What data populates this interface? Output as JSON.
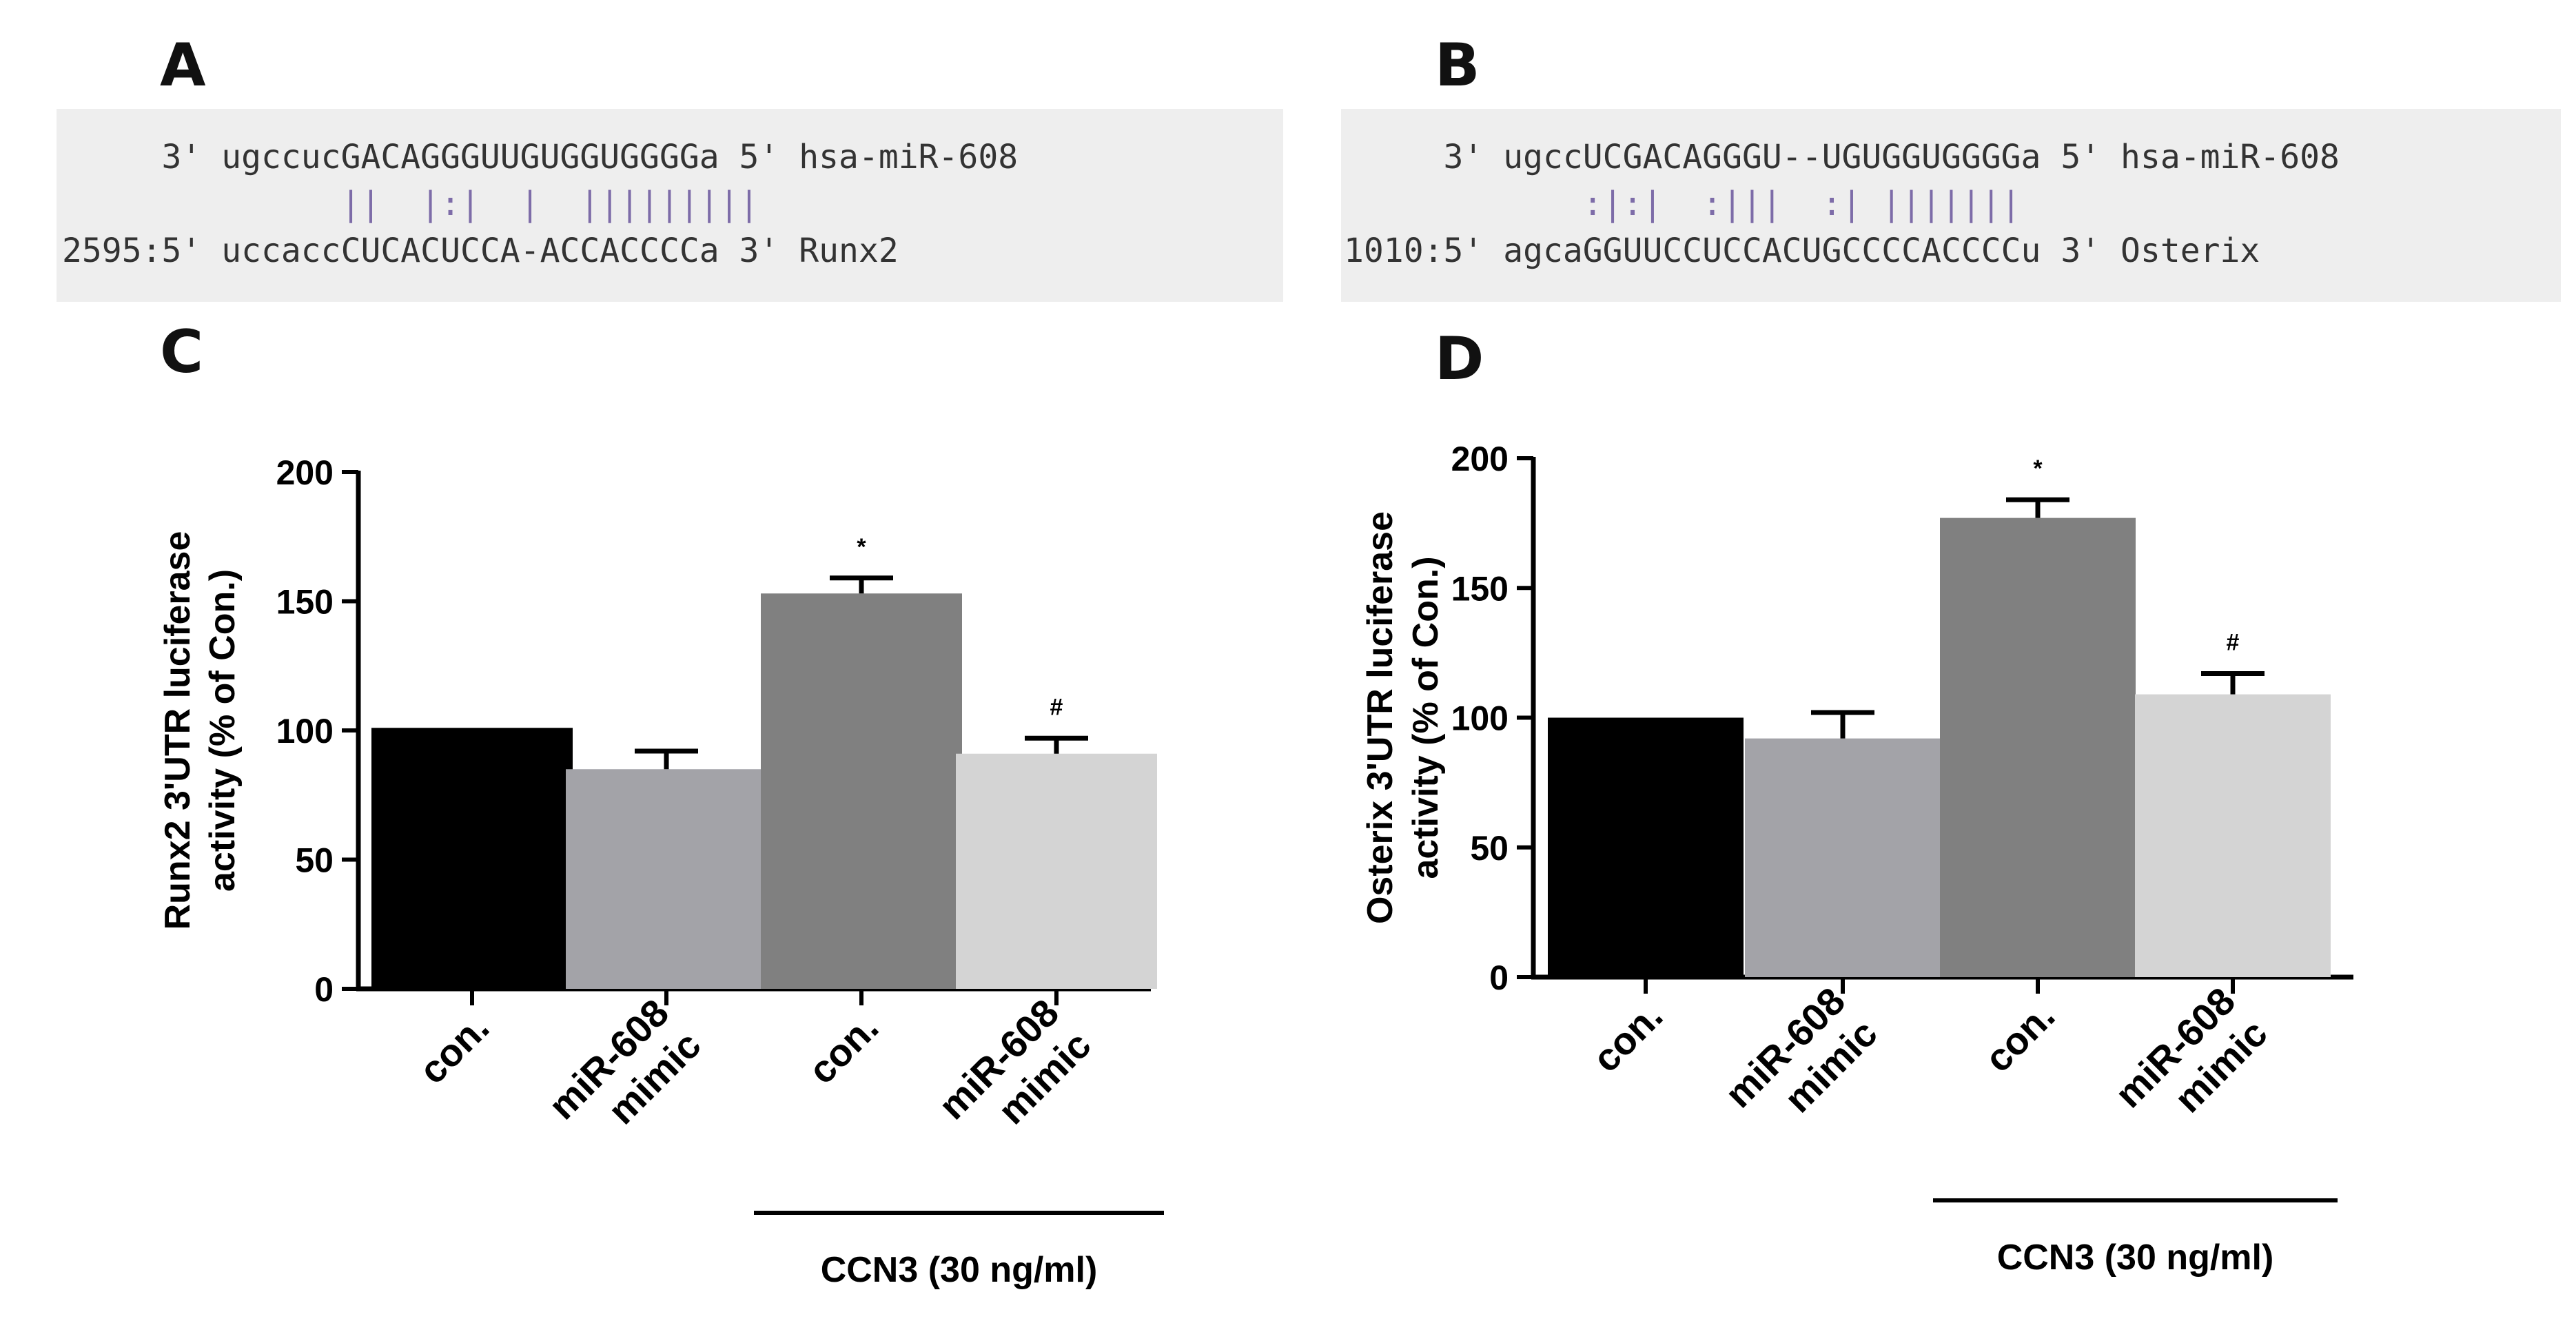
{
  "panels": {
    "A": {
      "letter": "A",
      "line1": "     3' ugccucGACAGGGUUGUGGUGGGGa 5' hsa-miR-608",
      "line2": "              ||  |:|  |  |||||||||",
      "line3": "2595:5' uccaccCUCACUCCA-ACCACCCCa 3' Runx2"
    },
    "B": {
      "letter": "B",
      "line1": "     3' ugccUCGACAGGGU--UGUGGUGGGGa 5' hsa-miR-608",
      "line2": "            :|:|  :|||  :| |||||||",
      "line3": "1010:5' agcaGGUUCCUCCACUGCCCCACCCCu 3' Osterix"
    },
    "C": {
      "letter": "C"
    },
    "D": {
      "letter": "D"
    }
  },
  "chart_data": [
    {
      "type": "bar",
      "panel": "C",
      "ylabel_line1": "Runx2 3'UTR luciferase",
      "ylabel_line2": "activity (% of Con.)",
      "ylim": [
        0,
        200
      ],
      "yticks": [
        "0",
        "50",
        "100",
        "150",
        "200"
      ],
      "ytick_values": [
        0,
        50,
        100,
        150,
        200
      ],
      "categories": [
        [
          "con."
        ],
        [
          "miR-608",
          "mimic"
        ],
        [
          "con."
        ],
        [
          "miR-608",
          "mimic"
        ]
      ],
      "values": [
        101,
        85,
        153,
        91
      ],
      "errors": [
        0,
        7,
        6,
        6
      ],
      "significance": [
        "",
        "",
        "*",
        "#"
      ],
      "colors": [
        "#000000",
        "#a3a3a8",
        "#808080",
        "#d4d4d4"
      ],
      "condition_label": "CCN3 (30 ng/ml)",
      "condition_spans": [
        2,
        3
      ]
    },
    {
      "type": "bar",
      "panel": "D",
      "ylabel_line1": "Osterix 3'UTR luciferase",
      "ylabel_line2": "activity (% of Con.)",
      "ylim": [
        0,
        200
      ],
      "yticks": [
        "0",
        "50",
        "100",
        "150",
        "200"
      ],
      "ytick_values": [
        0,
        50,
        100,
        150,
        200
      ],
      "categories": [
        [
          "con."
        ],
        [
          "miR-608",
          "mimic"
        ],
        [
          "con."
        ],
        [
          "miR-608",
          "mimic"
        ]
      ],
      "values": [
        100,
        92,
        177,
        109
      ],
      "errors": [
        0,
        10,
        7,
        8
      ],
      "significance": [
        "",
        "",
        "*",
        "#"
      ],
      "colors": [
        "#000000",
        "#a3a3a8",
        "#808080",
        "#d4d4d4"
      ],
      "condition_label": "CCN3 (30 ng/ml)",
      "condition_spans": [
        2,
        3
      ]
    }
  ]
}
